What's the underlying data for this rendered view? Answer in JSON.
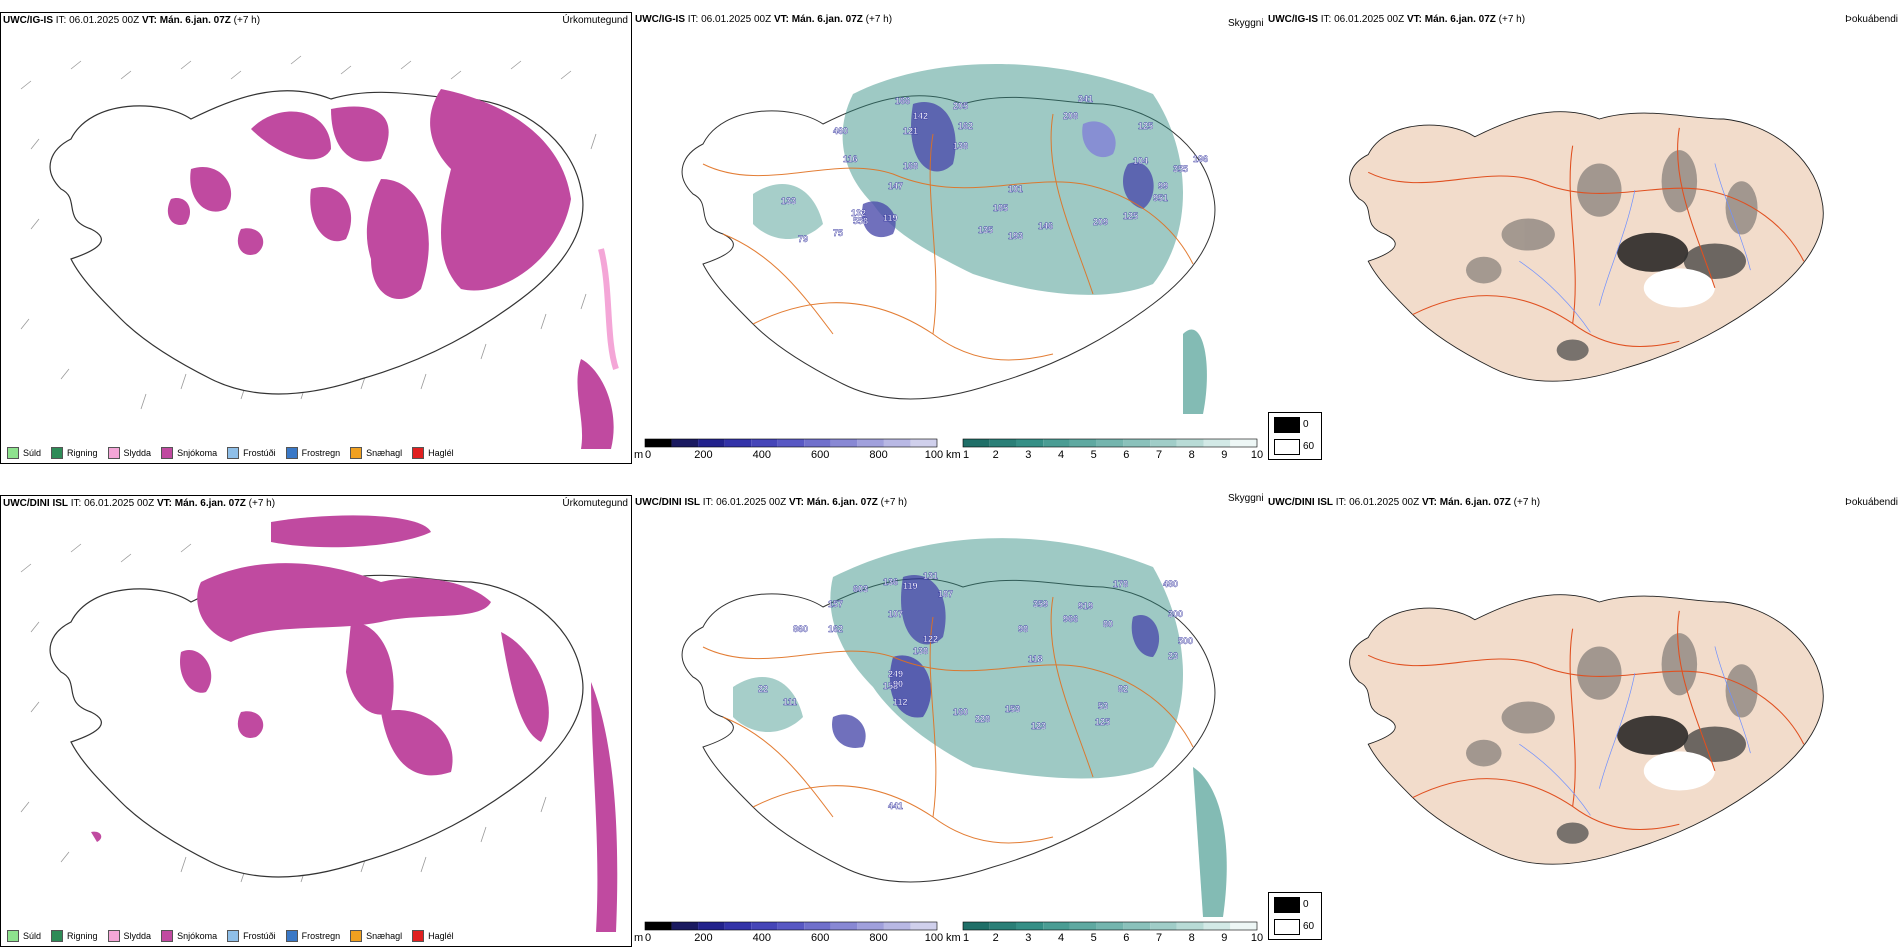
{
  "rows": [
    {
      "model": "UWC/IG-IS",
      "it_label": "IT:",
      "it_value": "06.01.2025 00Z",
      "vt_label": "VT:",
      "vt_value": "Mán. 6.jan. 07Z",
      "lead": "(+7 h)",
      "precip_title": "Úrkomutegund",
      "vis_title": "Skyggni",
      "fog_title": "Þokuábendi",
      "vis_labels": [
        "460",
        "166",
        "142",
        "205",
        "121",
        "162",
        "138",
        "208",
        "341",
        "125",
        "196",
        "104",
        "116",
        "168",
        "147",
        "101",
        "355",
        "99",
        "951",
        "133",
        "132",
        "185",
        "119",
        "135",
        "193",
        "125",
        "146",
        "209",
        "558",
        "75",
        "79"
      ]
    },
    {
      "model": "UWC/DINI ISL",
      "it_label": "IT:",
      "it_value": "06.01.2025 00Z",
      "vt_label": "VT:",
      "vt_value": "Mán. 6.jan. 07Z",
      "lead": "(+7 h)",
      "precip_title": "Úrkomutegund",
      "vis_title": "Skyggni",
      "fog_title": "Þokuábendi",
      "vis_labels": [
        "603",
        "136",
        "119",
        "131",
        "187",
        "178",
        "480",
        "157",
        "107",
        "359",
        "919",
        "80",
        "300",
        "860",
        "162",
        "122",
        "98",
        "966",
        "500",
        "138",
        "23",
        "249",
        "158",
        "90",
        "118",
        "111",
        "112",
        "160",
        "228",
        "153",
        "123",
        "125",
        "53",
        "82",
        "22",
        "441"
      ]
    }
  ],
  "precip_legend": [
    {
      "label": "Súld",
      "color": "#8ee28e"
    },
    {
      "label": "Rigning",
      "color": "#2e8b57"
    },
    {
      "label": "Slydda",
      "color": "#f4a6d7"
    },
    {
      "label": "Snjókoma",
      "color": "#c04aa0"
    },
    {
      "label": "Frostúði",
      "color": "#8fbfe8"
    },
    {
      "label": "Frostregn",
      "color": "#3a78c6"
    },
    {
      "label": "Snæhagl",
      "color": "#f0a020"
    },
    {
      "label": "Haglél",
      "color": "#e02020"
    }
  ],
  "cbar_m": {
    "unit": "m",
    "ticks": [
      "0",
      "200",
      "400",
      "600",
      "800",
      "1000"
    ]
  },
  "cbar_km": {
    "unit": "km",
    "ticks": [
      "1",
      "2",
      "3",
      "4",
      "5",
      "6",
      "7",
      "8",
      "9",
      "10"
    ]
  },
  "fog_scale": {
    "top": "0",
    "bottom": "60"
  },
  "colors": {
    "snow": "#c04aa0",
    "vis_teal": "#2e8b80",
    "vis_blue": "#2c2c9c",
    "road": "#e07020",
    "land_fog": "#f2dccb",
    "river": "#7090ff"
  }
}
